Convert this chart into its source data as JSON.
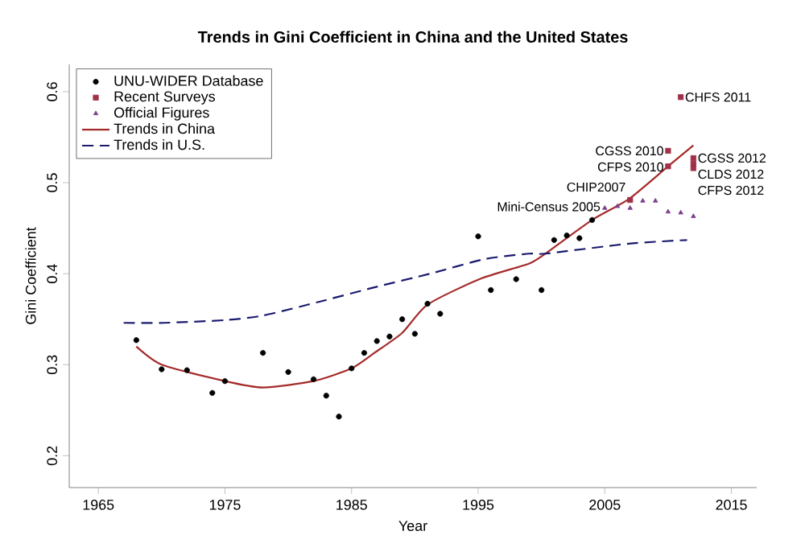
{
  "chart_data": {
    "type": "scatter",
    "title": "Trends in Gini Coefficient in China and the United States",
    "xlabel": "Year",
    "ylabel": "Gini Coefficient",
    "xlim": [
      1962.7,
      2017
    ],
    "ylim": [
      0.165,
      0.63
    ],
    "xticks": [
      1965,
      1975,
      1985,
      1995,
      2005,
      2015
    ],
    "yticks": [
      0.2,
      0.3,
      0.4,
      0.5,
      0.6
    ],
    "legend": "top left",
    "grid": false,
    "series": [
      {
        "name": "UNU-WIDER Database",
        "marker": "circle",
        "color": "#000000",
        "x": [
          1968,
          1970,
          1972,
          1974,
          1975,
          1978,
          1980,
          1982,
          1983,
          1984,
          1985,
          1986,
          1987,
          1988,
          1989,
          1990,
          1991,
          1992,
          1995,
          1996,
          1998,
          2000,
          2001,
          2002,
          2003,
          2004
        ],
        "values": [
          0.327,
          0.295,
          0.294,
          0.269,
          0.282,
          0.313,
          0.292,
          0.284,
          0.266,
          0.243,
          0.296,
          0.313,
          0.326,
          0.331,
          0.35,
          0.334,
          0.367,
          0.356,
          0.441,
          0.382,
          0.394,
          0.382,
          0.437,
          0.442,
          0.439,
          0.459
        ]
      },
      {
        "name": "Recent Surveys",
        "marker": "square",
        "color": "#a03048",
        "x": [
          2011,
          2010,
          2010,
          2012,
          2012,
          2012,
          2007
        ],
        "values": [
          0.594,
          0.535,
          0.518,
          0.527,
          0.521,
          0.516,
          0.481
        ]
      },
      {
        "name": "Official Figures",
        "marker": "triangle",
        "color": "#7b3f8c",
        "x": [
          2005,
          2006,
          2007,
          2008,
          2009,
          2010,
          2011,
          2012
        ],
        "values": [
          0.472,
          0.474,
          0.472,
          0.48,
          0.48,
          0.468,
          0.467,
          0.463
        ]
      },
      {
        "name": "Trends in China",
        "type": "line",
        "line_style": "solid",
        "color": "#a52a2a",
        "x": [
          1968,
          1970,
          1975,
          1978,
          1982,
          1985,
          1986.8,
          1989,
          1991,
          1995.1,
          1999,
          2000.3,
          2004,
          2006.9,
          2010,
          2012
        ],
        "values": [
          0.32,
          0.3,
          0.282,
          0.275,
          0.282,
          0.296,
          0.313,
          0.335,
          0.366,
          0.394,
          0.411,
          0.422,
          0.459,
          0.482,
          0.518,
          0.541
        ]
      },
      {
        "name": "Trends in U.S.",
        "type": "line",
        "line_style": "dashed",
        "color": "#1a1a6e",
        "x": [
          1967,
          1970.2,
          1975,
          1978,
          1982.4,
          1986.8,
          1991.2,
          1995.5,
          1999,
          2000.3,
          2006.9,
          2011.5
        ],
        "values": [
          0.346,
          0.346,
          0.349,
          0.354,
          0.369,
          0.385,
          0.4,
          0.416,
          0.422,
          0.422,
          0.433,
          0.437
        ]
      }
    ],
    "annotations": [
      {
        "text": "CHFS 2011",
        "x": 2011,
        "y": 0.594
      },
      {
        "text": "CGSS 2010",
        "x": 2010,
        "y": 0.535
      },
      {
        "text": "CFPS 2010",
        "x": 2010,
        "y": 0.518
      },
      {
        "text": "CGSS 2012",
        "x": 2012,
        "y": 0.527
      },
      {
        "text": "CLDS 2012",
        "x": 2012,
        "y": 0.521
      },
      {
        "text": "CFPS 2012",
        "x": 2012,
        "y": 0.516
      },
      {
        "text": "CHIP2007",
        "x": 2007,
        "y": 0.481
      },
      {
        "text": "Mini-Census 2005",
        "x": 2005,
        "y": 0.472
      }
    ]
  }
}
